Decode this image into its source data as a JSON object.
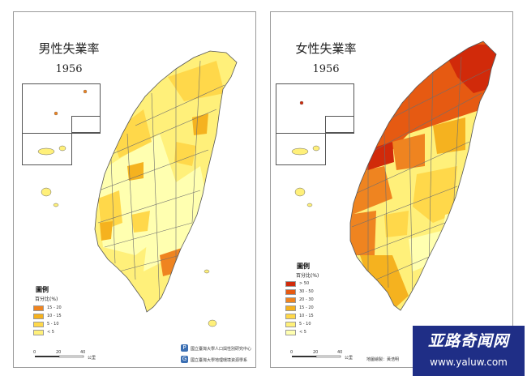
{
  "colors": {
    "c1": "#ffffb0",
    "c2": "#fff07a",
    "c3": "#ffd84a",
    "c4": "#f5b21f",
    "c5": "#ef8420",
    "c6": "#e65a12",
    "c7": "#d12a0a",
    "boundary": "#6e6e6e",
    "watermark_bg": "#1f2e86"
  },
  "maps": [
    {
      "title": "男性失業率",
      "year": "1956",
      "legend": {
        "title": "圖例",
        "subtitle": "百分比(%)",
        "items": [
          {
            "label": "15 - 20",
            "color": "#ef8420"
          },
          {
            "label": "10 - 15",
            "color": "#f5b21f"
          },
          {
            "label": "5 - 10",
            "color": "#ffd84a"
          },
          {
            "label": "< 5",
            "color": "#fff07a"
          }
        ]
      },
      "scale": {
        "labels": [
          "0",
          "20",
          "40"
        ],
        "unit": "公里"
      },
      "credits": [
        "國立臺灣大學人口與性別研究中心",
        "國立臺灣大學地理環境資源學系"
      ]
    },
    {
      "title": "女性失業率",
      "year": "1956",
      "legend": {
        "title": "圖例",
        "subtitle": "百分比(%)",
        "items": [
          {
            "label": "> 50",
            "color": "#d12a0a"
          },
          {
            "label": "30 - 50",
            "color": "#e65a12"
          },
          {
            "label": "20 - 30",
            "color": "#ef8420"
          },
          {
            "label": "15 - 20",
            "color": "#f5b21f"
          },
          {
            "label": "10 - 15",
            "color": "#ffd84a"
          },
          {
            "label": "5 - 10",
            "color": "#fff07a"
          },
          {
            "label": "< 5",
            "color": "#ffffb0"
          }
        ]
      },
      "scale": {
        "labels": [
          "0",
          "20",
          "40"
        ],
        "unit": "公里"
      },
      "credits": [
        "地圖繪製：黃浩明"
      ]
    }
  ],
  "watermark": {
    "title": "亚路奇闻网",
    "url": "www.yaluw.com"
  }
}
